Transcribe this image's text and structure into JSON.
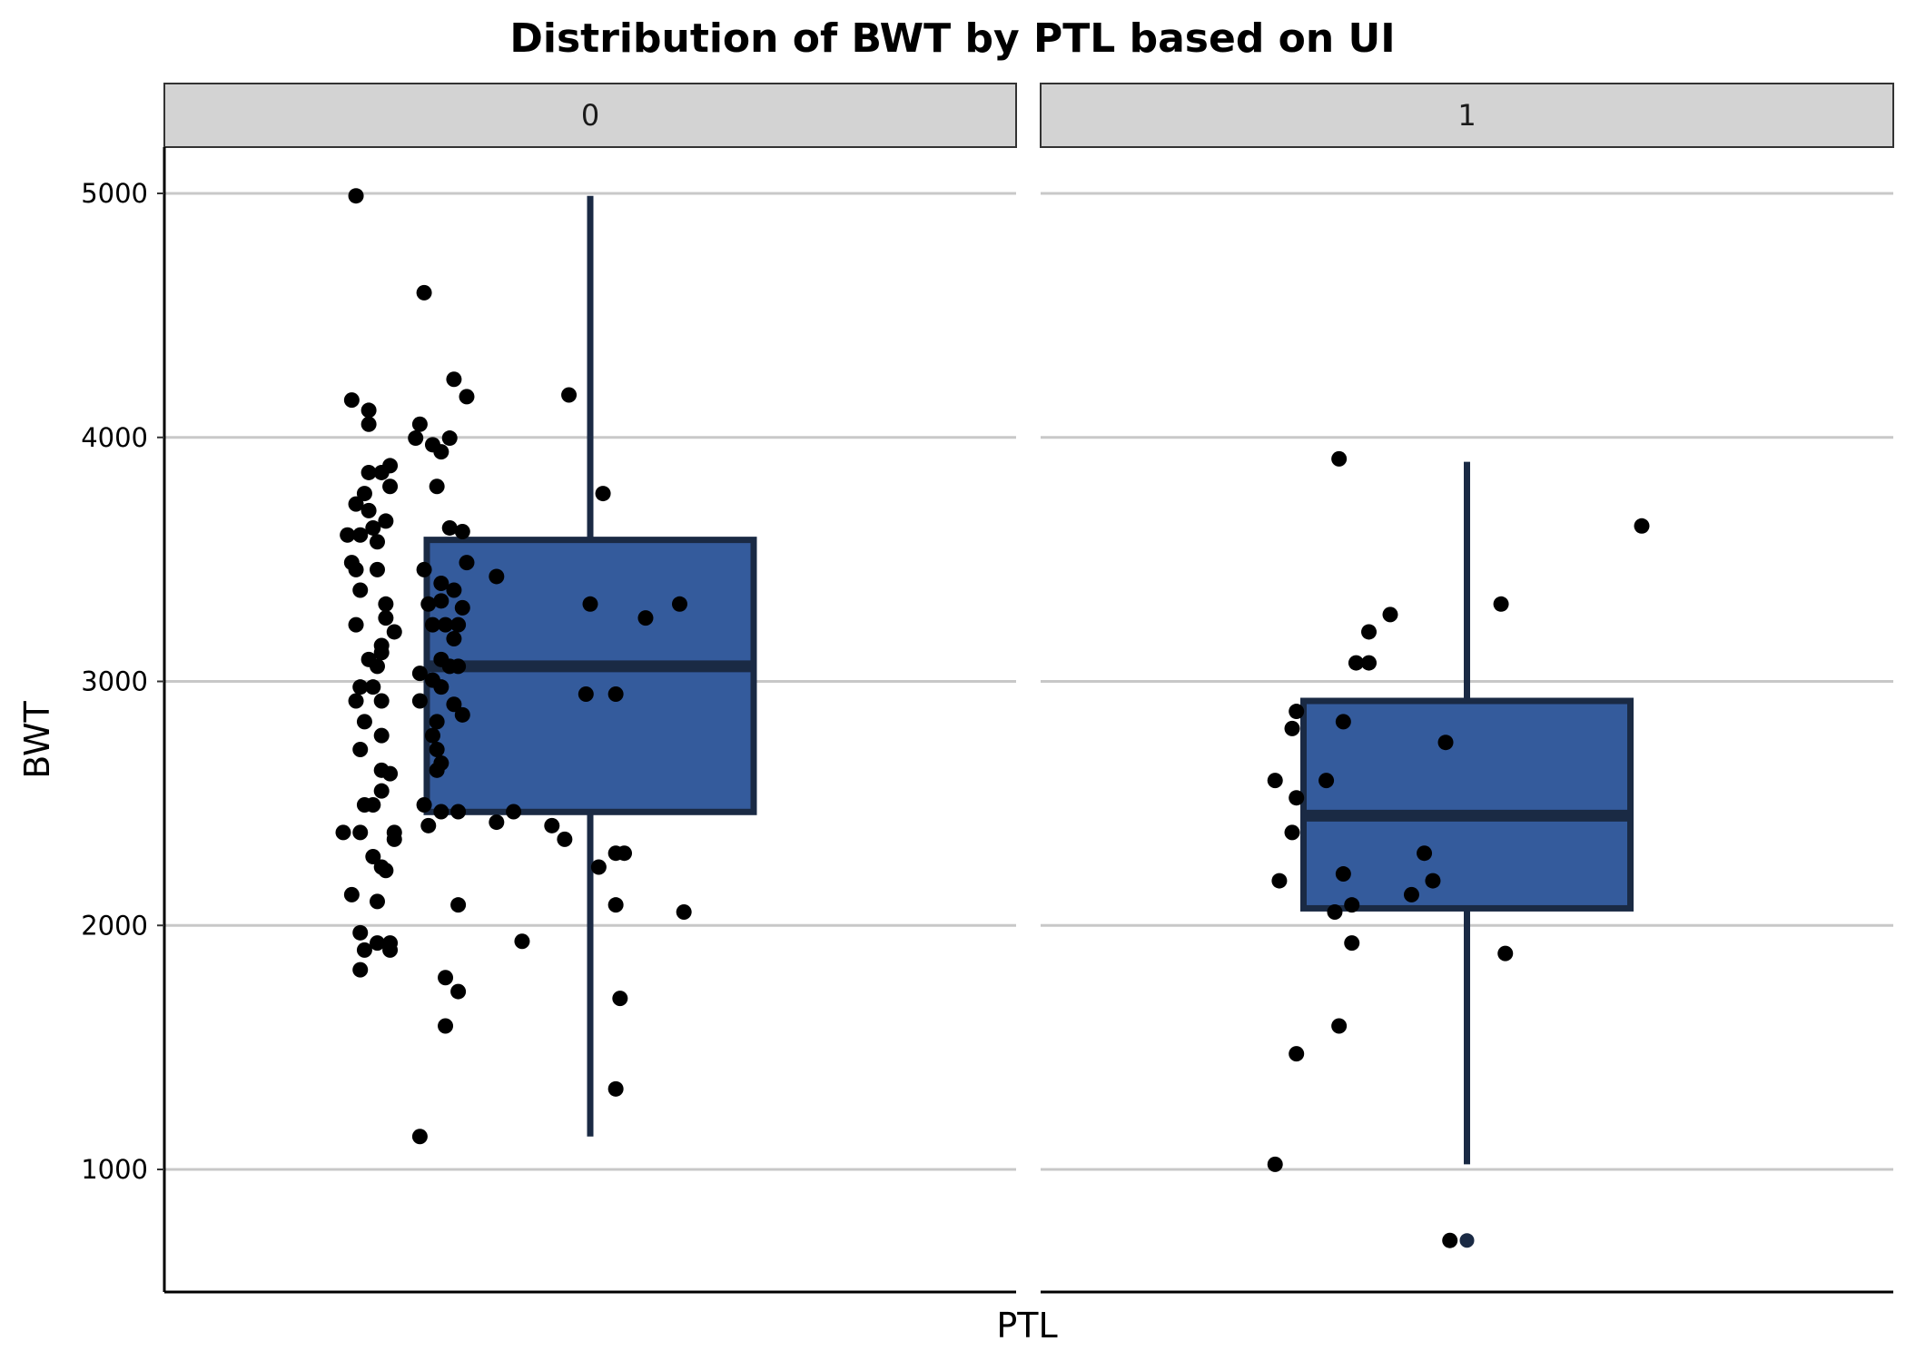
{
  "chart_data": {
    "type": "box",
    "title": "Distribution of BWT by PTL based on UI",
    "xlabel": "PTL",
    "ylabel": "BWT",
    "ylim": [
      500,
      5200
    ],
    "yticks": [
      1000,
      2000,
      3000,
      4000,
      5000
    ],
    "grid": "horizontal major lines",
    "colors": {
      "box_fill": "#345b9c",
      "box_outline": "#1a2a44",
      "points": "#000000",
      "grid": "#c8c8c8",
      "strip_fill": "#d3d3d3"
    },
    "panels": [
      {
        "label": "0",
        "box": {
          "min": 1135,
          "q1": 2465,
          "median": 3062,
          "q3": 3580,
          "max": 4990
        },
        "points": [
          {
            "x": -0.55,
            "y": 4990
          },
          {
            "x": -0.39,
            "y": 4593
          },
          {
            "x": -0.56,
            "y": 4153
          },
          {
            "x": -0.32,
            "y": 4238
          },
          {
            "x": -0.29,
            "y": 4167
          },
          {
            "x": -0.05,
            "y": 4174
          },
          {
            "x": -0.52,
            "y": 4111
          },
          {
            "x": -0.52,
            "y": 4054
          },
          {
            "x": -0.4,
            "y": 4054
          },
          {
            "x": -0.41,
            "y": 3997
          },
          {
            "x": -0.33,
            "y": 3997
          },
          {
            "x": -0.37,
            "y": 3970
          },
          {
            "x": -0.35,
            "y": 3941
          },
          {
            "x": -0.47,
            "y": 3884
          },
          {
            "x": -0.49,
            "y": 3856
          },
          {
            "x": -0.52,
            "y": 3856
          },
          {
            "x": -0.47,
            "y": 3799
          },
          {
            "x": -0.36,
            "y": 3799
          },
          {
            "x": -0.53,
            "y": 3770
          },
          {
            "x": 0.03,
            "y": 3770
          },
          {
            "x": -0.55,
            "y": 3727
          },
          {
            "x": -0.52,
            "y": 3700
          },
          {
            "x": -0.48,
            "y": 3657
          },
          {
            "x": -0.51,
            "y": 3629
          },
          {
            "x": -0.57,
            "y": 3600
          },
          {
            "x": -0.54,
            "y": 3600
          },
          {
            "x": -0.33,
            "y": 3629
          },
          {
            "x": -0.3,
            "y": 3614
          },
          {
            "x": -0.5,
            "y": 3572
          },
          {
            "x": -0.56,
            "y": 3487
          },
          {
            "x": -0.55,
            "y": 3458
          },
          {
            "x": -0.5,
            "y": 3458
          },
          {
            "x": -0.39,
            "y": 3458
          },
          {
            "x": -0.29,
            "y": 3487
          },
          {
            "x": -0.22,
            "y": 3430
          },
          {
            "x": -0.54,
            "y": 3374
          },
          {
            "x": -0.35,
            "y": 3402
          },
          {
            "x": -0.32,
            "y": 3374
          },
          {
            "x": -0.48,
            "y": 3317
          },
          {
            "x": -0.38,
            "y": 3317
          },
          {
            "x": -0.35,
            "y": 3330
          },
          {
            "x": -0.3,
            "y": 3302
          },
          {
            "x": 0.0,
            "y": 3317
          },
          {
            "x": 0.13,
            "y": 3260
          },
          {
            "x": 0.21,
            "y": 3317
          },
          {
            "x": -0.55,
            "y": 3232
          },
          {
            "x": -0.48,
            "y": 3260
          },
          {
            "x": -0.46,
            "y": 3203
          },
          {
            "x": -0.37,
            "y": 3232
          },
          {
            "x": -0.34,
            "y": 3232
          },
          {
            "x": -0.31,
            "y": 3232
          },
          {
            "x": -0.32,
            "y": 3175
          },
          {
            "x": -0.49,
            "y": 3147
          },
          {
            "x": -0.49,
            "y": 3118
          },
          {
            "x": -0.52,
            "y": 3090
          },
          {
            "x": -0.5,
            "y": 3062
          },
          {
            "x": -0.35,
            "y": 3090
          },
          {
            "x": -0.33,
            "y": 3062
          },
          {
            "x": -0.31,
            "y": 3062
          },
          {
            "x": -0.4,
            "y": 3033
          },
          {
            "x": -0.37,
            "y": 3005
          },
          {
            "x": -0.35,
            "y": 2977
          },
          {
            "x": -0.51,
            "y": 2977
          },
          {
            "x": -0.54,
            "y": 2977
          },
          {
            "x": -0.55,
            "y": 2920
          },
          {
            "x": -0.49,
            "y": 2920
          },
          {
            "x": -0.4,
            "y": 2920
          },
          {
            "x": -0.32,
            "y": 2906
          },
          {
            "x": -0.3,
            "y": 2863
          },
          {
            "x": -0.01,
            "y": 2948
          },
          {
            "x": 0.06,
            "y": 2948
          },
          {
            "x": -0.53,
            "y": 2835
          },
          {
            "x": -0.49,
            "y": 2778
          },
          {
            "x": -0.37,
            "y": 2778
          },
          {
            "x": -0.36,
            "y": 2835
          },
          {
            "x": -0.36,
            "y": 2721
          },
          {
            "x": -0.54,
            "y": 2721
          },
          {
            "x": -0.49,
            "y": 2636
          },
          {
            "x": -0.47,
            "y": 2622
          },
          {
            "x": -0.35,
            "y": 2665
          },
          {
            "x": -0.36,
            "y": 2636
          },
          {
            "x": -0.49,
            "y": 2551
          },
          {
            "x": -0.53,
            "y": 2494
          },
          {
            "x": -0.51,
            "y": 2494
          },
          {
            "x": -0.39,
            "y": 2494
          },
          {
            "x": -0.35,
            "y": 2466
          },
          {
            "x": -0.31,
            "y": 2466
          },
          {
            "x": -0.18,
            "y": 2466
          },
          {
            "x": -0.22,
            "y": 2423
          },
          {
            "x": -0.09,
            "y": 2409
          },
          {
            "x": -0.46,
            "y": 2381
          },
          {
            "x": -0.58,
            "y": 2381
          },
          {
            "x": -0.54,
            "y": 2381
          },
          {
            "x": -0.46,
            "y": 2353
          },
          {
            "x": -0.38,
            "y": 2409
          },
          {
            "x": -0.06,
            "y": 2353
          },
          {
            "x": 0.08,
            "y": 2296
          },
          {
            "x": 0.06,
            "y": 2296
          },
          {
            "x": -0.51,
            "y": 2282
          },
          {
            "x": -0.49,
            "y": 2239
          },
          {
            "x": -0.48,
            "y": 2225
          },
          {
            "x": 0.02,
            "y": 2239
          },
          {
            "x": -0.56,
            "y": 2126
          },
          {
            "x": -0.5,
            "y": 2098
          },
          {
            "x": -0.31,
            "y": 2084
          },
          {
            "x": 0.06,
            "y": 2084
          },
          {
            "x": 0.22,
            "y": 2055
          },
          {
            "x": -0.54,
            "y": 1970
          },
          {
            "x": -0.5,
            "y": 1928
          },
          {
            "x": -0.47,
            "y": 1928
          },
          {
            "x": -0.16,
            "y": 1935
          },
          {
            "x": -0.53,
            "y": 1899
          },
          {
            "x": -0.47,
            "y": 1899
          },
          {
            "x": -0.54,
            "y": 1818
          },
          {
            "x": -0.34,
            "y": 1786
          },
          {
            "x": -0.31,
            "y": 1729
          },
          {
            "x": 0.07,
            "y": 1701
          },
          {
            "x": -0.34,
            "y": 1588
          },
          {
            "x": 0.06,
            "y": 1330
          },
          {
            "x": -0.4,
            "y": 1135
          }
        ]
      },
      {
        "label": "1",
        "box": {
          "min": 1021,
          "q1": 2070,
          "median": 2450,
          "q3": 2920,
          "max": 3900
        },
        "outliers": [
          709
        ],
        "points": [
          {
            "x": -0.3,
            "y": 3912
          },
          {
            "x": 0.41,
            "y": 3637
          },
          {
            "x": 0.08,
            "y": 3317
          },
          {
            "x": -0.18,
            "y": 3274
          },
          {
            "x": -0.23,
            "y": 3203
          },
          {
            "x": -0.26,
            "y": 3076
          },
          {
            "x": -0.23,
            "y": 3076
          },
          {
            "x": -0.4,
            "y": 2877
          },
          {
            "x": -0.29,
            "y": 2835
          },
          {
            "x": -0.41,
            "y": 2807
          },
          {
            "x": -0.05,
            "y": 2750
          },
          {
            "x": -0.33,
            "y": 2594
          },
          {
            "x": -0.45,
            "y": 2594
          },
          {
            "x": -0.4,
            "y": 2523
          },
          {
            "x": -0.41,
            "y": 2381
          },
          {
            "x": -0.1,
            "y": 2296
          },
          {
            "x": -0.29,
            "y": 2211
          },
          {
            "x": -0.44,
            "y": 2183
          },
          {
            "x": -0.08,
            "y": 2183
          },
          {
            "x": -0.13,
            "y": 2126
          },
          {
            "x": -0.27,
            "y": 2084
          },
          {
            "x": -0.31,
            "y": 2055
          },
          {
            "x": -0.27,
            "y": 1928
          },
          {
            "x": 0.09,
            "y": 1885
          },
          {
            "x": -0.3,
            "y": 1588
          },
          {
            "x": -0.4,
            "y": 1474
          },
          {
            "x": -0.45,
            "y": 1021
          },
          {
            "x": -0.04,
            "y": 709
          }
        ]
      }
    ]
  }
}
